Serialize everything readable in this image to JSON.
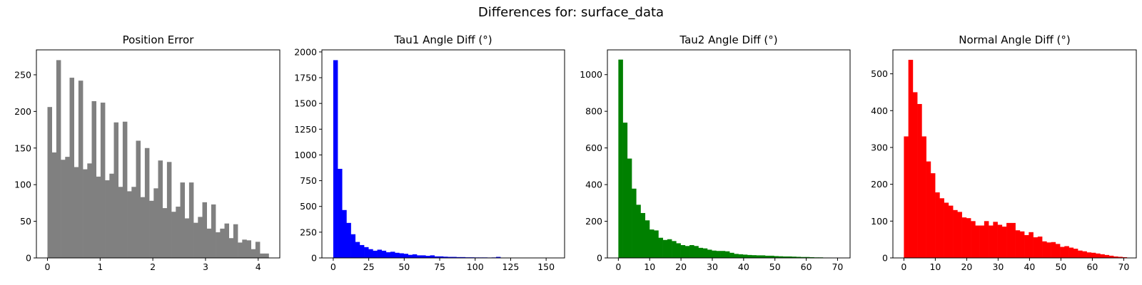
{
  "figure": {
    "suptitle": "Differences for: surface_data"
  },
  "chart_data": [
    {
      "type": "bar",
      "title": "Position Error",
      "color": "#808080",
      "xlabel": "",
      "ylabel": "",
      "xlim": [
        -0.21,
        4.41
      ],
      "ylim": [
        0,
        284
      ],
      "xticks": [
        0,
        1,
        2,
        3,
        4
      ],
      "yticks": [
        0,
        50,
        100,
        150,
        200,
        250
      ],
      "bin_start": 0,
      "bin_width": 0.084,
      "values": [
        206,
        144,
        270,
        134,
        138,
        246,
        124,
        242,
        121,
        129,
        214,
        111,
        212,
        106,
        115,
        185,
        97,
        186,
        91,
        97,
        160,
        83,
        150,
        78,
        95,
        133,
        68,
        131,
        63,
        70,
        103,
        54,
        103,
        48,
        56,
        76,
        40,
        73,
        35,
        40,
        47,
        27,
        46,
        21,
        25,
        24,
        12,
        22,
        6,
        6
      ]
    },
    {
      "type": "bar",
      "title": "Tau1 Angle Diff (°)",
      "color": "#0000ff",
      "xlabel": "",
      "ylabel": "",
      "xlim": [
        -8,
        163
      ],
      "ylim": [
        0,
        2020
      ],
      "xticks": [
        0,
        25,
        50,
        75,
        100,
        125,
        150
      ],
      "yticks": [
        0,
        250,
        500,
        750,
        1000,
        1250,
        1500,
        1750,
        2000
      ],
      "bin_start": 0,
      "bin_width": 3.1,
      "values": [
        1920,
        865,
        465,
        340,
        230,
        155,
        125,
        105,
        85,
        70,
        80,
        70,
        55,
        60,
        50,
        45,
        40,
        30,
        35,
        25,
        25,
        20,
        25,
        15,
        15,
        12,
        10,
        10,
        8,
        8,
        6,
        6,
        5,
        5,
        5,
        4,
        5,
        10,
        3,
        3,
        2,
        2,
        2,
        2,
        1,
        1,
        1,
        1,
        1,
        1
      ]
    },
    {
      "type": "bar",
      "title": "Tau2 Angle Diff (°)",
      "color": "#008000",
      "xlabel": "",
      "ylabel": "",
      "xlim": [
        -3.5,
        74
      ],
      "ylim": [
        0,
        1135
      ],
      "xticks": [
        0,
        10,
        20,
        30,
        40,
        50,
        60,
        70
      ],
      "yticks": [
        0,
        200,
        400,
        600,
        800,
        1000
      ],
      "bin_start": 0,
      "bin_width": 1.42,
      "values": [
        1082,
        738,
        542,
        378,
        290,
        245,
        205,
        155,
        150,
        110,
        98,
        102,
        92,
        80,
        70,
        65,
        70,
        65,
        55,
        52,
        45,
        40,
        38,
        38,
        36,
        28,
        22,
        20,
        18,
        16,
        15,
        14,
        14,
        12,
        12,
        10,
        9,
        8,
        8,
        7,
        6,
        5,
        5,
        4,
        3,
        3,
        2,
        2,
        1,
        1
      ]
    },
    {
      "type": "bar",
      "title": "Normal Angle Diff (°)",
      "color": "#ff0000",
      "xlabel": "",
      "ylabel": "",
      "xlim": [
        -3.5,
        74
      ],
      "ylim": [
        0,
        565
      ],
      "xticks": [
        0,
        10,
        20,
        30,
        40,
        50,
        60,
        70
      ],
      "yticks": [
        0,
        100,
        200,
        300,
        400,
        500
      ],
      "bin_start": 0,
      "bin_width": 1.42,
      "values": [
        330,
        538,
        450,
        418,
        330,
        262,
        230,
        178,
        162,
        150,
        142,
        130,
        125,
        110,
        108,
        100,
        88,
        88,
        100,
        88,
        98,
        90,
        85,
        95,
        95,
        75,
        72,
        62,
        70,
        56,
        58,
        45,
        42,
        43,
        38,
        30,
        32,
        28,
        25,
        20,
        18,
        15,
        14,
        12,
        10,
        8,
        6,
        4,
        3,
        2
      ]
    }
  ]
}
